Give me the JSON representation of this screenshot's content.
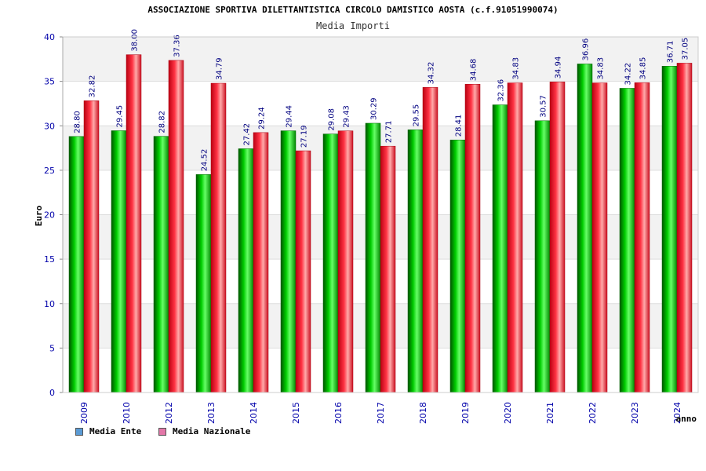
{
  "chart_data": {
    "type": "bar",
    "title": "ASSOCIAZIONE SPORTIVA DILETTANTISTICA CIRCOLO DAMISTICO AOSTA (c.f.91051990074)",
    "subtitle": "Media Importi",
    "xlabel": "anno",
    "ylabel": "Euro",
    "ylim": [
      0,
      40
    ],
    "yticks": [
      0,
      5,
      10,
      15,
      20,
      25,
      30,
      35,
      40
    ],
    "categories": [
      "2009",
      "2010",
      "2012",
      "2013",
      "2014",
      "2015",
      "2016",
      "2017",
      "2018",
      "2019",
      "2020",
      "2021",
      "2022",
      "2023",
      "2024"
    ],
    "series": [
      {
        "name": "Media Ente",
        "color": "#00aa00",
        "legend_color": "#5b9bd5",
        "values": [
          28.8,
          29.45,
          28.82,
          24.52,
          27.42,
          29.44,
          29.08,
          30.29,
          29.55,
          28.41,
          32.36,
          30.57,
          36.96,
          34.22,
          36.71
        ],
        "labels": [
          "28.80",
          "29.45",
          "28.82",
          "24.52",
          "27.42",
          "29.44",
          "29.08",
          "30.29",
          "29.55",
          "28.41",
          "32.36",
          "30.57",
          "36.96",
          "34.22",
          "36.71"
        ]
      },
      {
        "name": "Media Nazionale",
        "color": "#dd2233",
        "legend_color": "#e377a8",
        "values": [
          32.82,
          38.0,
          37.36,
          34.79,
          29.24,
          27.19,
          29.43,
          27.71,
          34.32,
          34.68,
          34.83,
          34.94,
          34.83,
          34.85,
          37.05
        ],
        "labels": [
          "32.82",
          "38.00",
          "37.36",
          "34.79",
          "29.24",
          "27.19",
          "29.43",
          "27.71",
          "34.32",
          "34.68",
          "34.83",
          "34.94",
          "34.83",
          "34.85",
          "37.05"
        ]
      }
    ],
    "grid": true,
    "legend_position": "bottom-left"
  }
}
